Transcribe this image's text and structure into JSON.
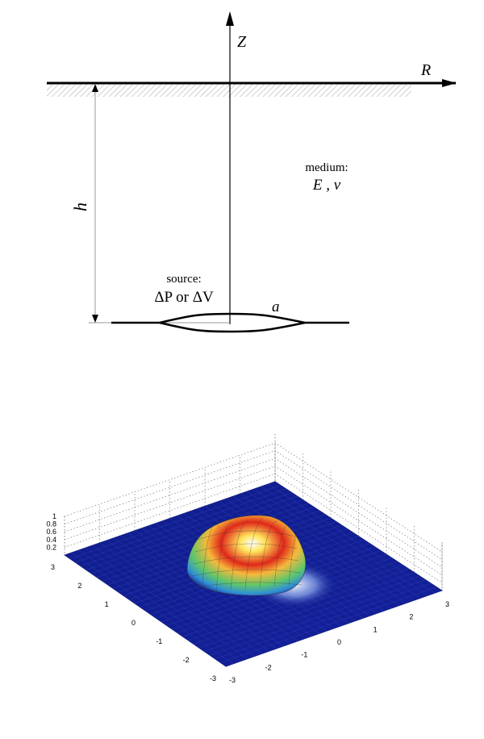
{
  "diagram": {
    "axis_z": "Z",
    "axis_r": "R",
    "depth": "h",
    "medium_label": "medium:",
    "medium_params": "E , v",
    "source_label": "source:",
    "source_params": "ΔP or ΔV",
    "radius": "a"
  },
  "surface": {
    "z_ticks": [
      "0.2",
      "0.4",
      "0.6",
      "0.8",
      "1"
    ],
    "y_ticks": [
      "3",
      "2",
      "1",
      "0",
      "-1",
      "-2",
      "-3"
    ],
    "x_ticks": [
      "-3",
      "-2",
      "-1",
      "0",
      "1",
      "2",
      "3"
    ]
  }
}
